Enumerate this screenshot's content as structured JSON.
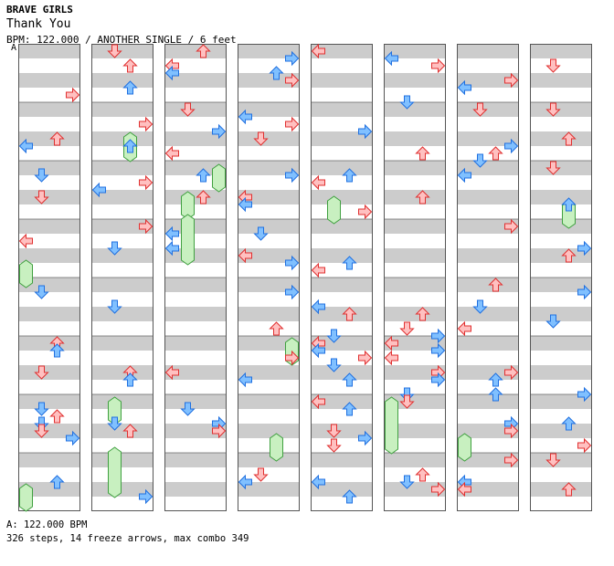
{
  "header": {
    "artist": "BRAVE GIRLS",
    "title": "Thank You",
    "info": "BPM: 122.000 / ANOTHER SINGLE / 6 feet",
    "bpm_marker": "A"
  },
  "footer": {
    "bpm_line": "A: 122.000 BPM",
    "stats_line": "326 steps, 14 freeze arrows, max combo 349"
  },
  "colors": {
    "stripe": "#cccccc",
    "lane_bg": "#ffffff",
    "red_arrow": "#ffc0c0",
    "red_stroke": "#e03030",
    "blue_arrow": "#80c0ff",
    "blue_stroke": "#2070e0",
    "freeze_fill": "#c8f0c0",
    "freeze_stroke": "#40a040"
  },
  "chart_data": {
    "type": "table",
    "columns": 8,
    "lanes": [
      "left",
      "down",
      "up",
      "right"
    ],
    "freeze_arrow_count": 14,
    "step_count": 326,
    "max_combo": 349
  }
}
